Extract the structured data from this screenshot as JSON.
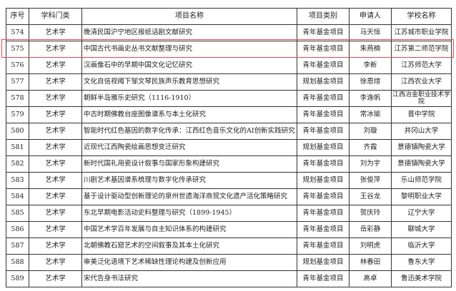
{
  "table": {
    "headers": [
      "序号",
      "学科门类",
      "项目名称",
      "项目类别",
      "申请人",
      "学校名称"
    ],
    "rows": [
      [
        "574",
        "艺术学",
        "晚清民国沪宁地区报纸话剧文献研究",
        "青年基金项目",
        "马天恒",
        "江苏城市职业学院"
      ],
      [
        "575",
        "艺术学",
        "中国古代书画史丛书文献整理与研究",
        "青年基金项目",
        "朱燕楠",
        "江苏第二师范学院"
      ],
      [
        "576",
        "艺术学",
        "汉画像石中的早期中国文化记忆研究",
        "青年基金项目",
        "李新",
        "江苏师范大学"
      ],
      [
        "577",
        "艺术学",
        "文化自信视阈下邹文琴民族声乐教育思想研究",
        "规划基金项目",
        "徐恩煊",
        "江西农业大学"
      ],
      [
        "578",
        "艺术学",
        "朝鲜半岛雅乐史研究（1116-1910）",
        "青年基金项目",
        "李逸帆",
        "江西冶金职业技术学院"
      ],
      [
        "579",
        "艺术学",
        "中古时期佛教台座图像谱系与本土化研究",
        "青年基金项目",
        "常冰瑜",
        "晋中学院"
      ],
      [
        "580",
        "艺术学",
        "智能时代红色基因的数字化传承：江西红色音乐文化的AI创新实践研究",
        "青年基金项目",
        "刘璇",
        "井冈山大学"
      ],
      [
        "581",
        "艺术学",
        "近现代江西陶瓷绘画思想变迁研究",
        "规划基金项目",
        "齐霞",
        "景德镇陶瓷大学"
      ],
      [
        "582",
        "艺术学",
        "新时代国礼用瓷设计叙事与国家形象构建研究",
        "青年基金项目",
        "刘为宇",
        "景德镇陶瓷大学"
      ],
      [
        "583",
        "艺术学",
        "川剧艺术基因谱系梳理与数字化传承研究",
        "规划基金项目",
        "张俊萍",
        "乐山师范学院"
      ],
      [
        "584",
        "艺术学",
        "基于设计驱动型创新理论的泉州世遗海洋商贸文化遗产活化策略研究",
        "青年基金项目",
        "王谷龙",
        "黎明职业大学"
      ],
      [
        "585",
        "艺术学",
        "东北早期电影活动史料整理与研究（1899-1945）",
        "青年基金项目",
        "贺庆玲",
        "辽宁大学"
      ],
      [
        "586",
        "艺术学",
        "中国艺术学百年发展与自主知识体系的构建研究",
        "青年基金项目",
        "岳彩静",
        "聊城大学"
      ],
      [
        "587",
        "艺术学",
        "北朝佛教石窟艺术的空间叙事及其本土化研究",
        "青年基金项目",
        "刘明虎",
        "临沂大学"
      ],
      [
        "588",
        "艺术学",
        "审美泛化语境下艺术稀缺性理论构建及创新应用",
        "规划基金项目",
        "林春田",
        "鲁东大学"
      ],
      [
        "589",
        "艺术学",
        "宋代告身书法研究",
        "青年基金项目",
        "高卓",
        "鲁迅美术学院"
      ]
    ]
  },
  "highlight": {
    "row": "575",
    "color": "#e8474a"
  }
}
